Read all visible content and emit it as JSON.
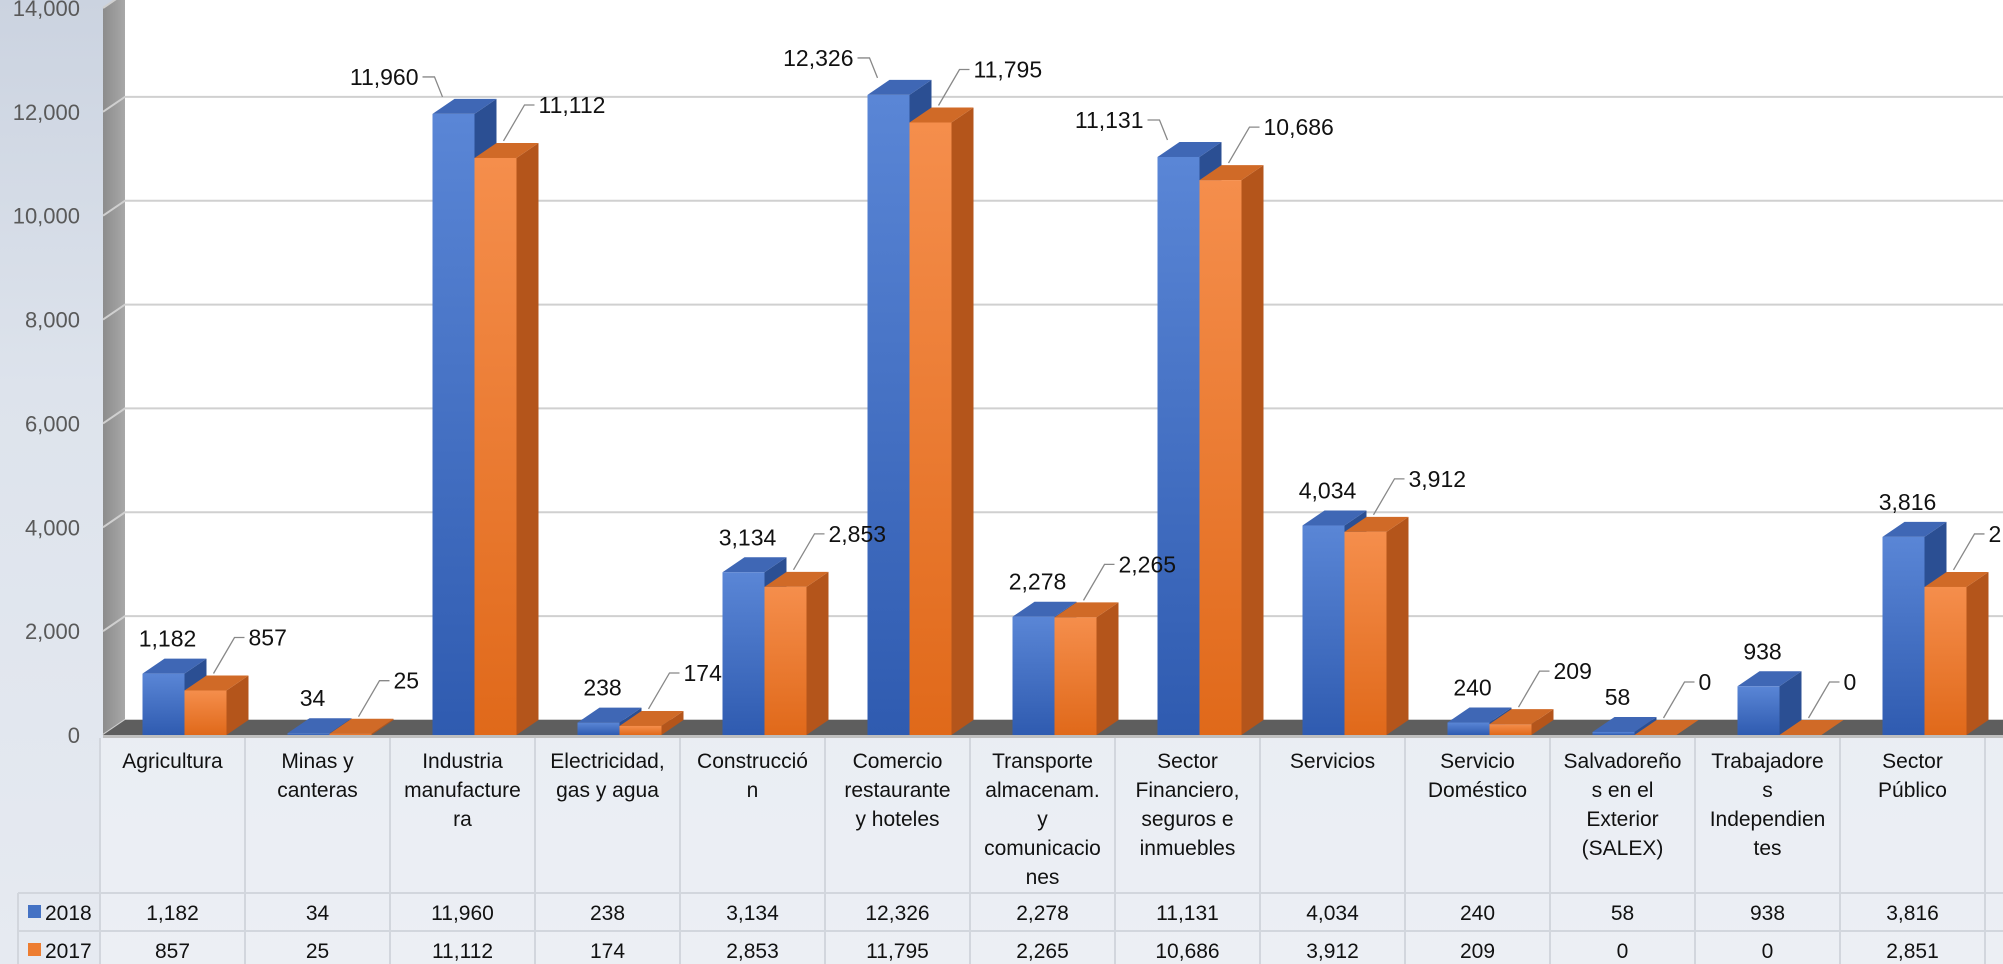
{
  "chart_data": {
    "type": "bar",
    "title": "",
    "xlabel": "",
    "ylabel": "",
    "ylim": [
      0,
      14000
    ],
    "yticks": [
      "0",
      "2,000",
      "4,000",
      "6,000",
      "8,000",
      "10,000",
      "12,000",
      "14,000"
    ],
    "grid": true,
    "legend": "data-table",
    "categories": [
      [
        "Agricultura"
      ],
      [
        "Minas y",
        "canteras"
      ],
      [
        "Industria",
        "manufacture",
        "ra"
      ],
      [
        "Electricidad,",
        "gas y agua"
      ],
      [
        "Construcció",
        "n"
      ],
      [
        "Comercio",
        "restaurante",
        "y hoteles"
      ],
      [
        "Transporte",
        "almacenam.",
        "y",
        "comunicacio",
        "nes"
      ],
      [
        "Sector",
        "Financiero,",
        "seguros e",
        "inmuebles"
      ],
      [
        "Servicios"
      ],
      [
        "Servicio",
        "Doméstico"
      ],
      [
        "Salvadoreño",
        "s en el",
        "Exterior",
        "(SALEX)"
      ],
      [
        "Trabajadore",
        "s",
        "Independien",
        "tes"
      ],
      [
        "Sector",
        "Público"
      ]
    ],
    "series": [
      {
        "name": "2018",
        "color": "#4472c4",
        "values": [
          1182,
          34,
          11960,
          238,
          3134,
          12326,
          2278,
          11131,
          4034,
          240,
          58,
          938,
          3816
        ],
        "labels": [
          "1,182",
          "34",
          "11,960",
          "238",
          "3,134",
          "12,326",
          "2,278",
          "11,131",
          "4,034",
          "240",
          "58",
          "938",
          "3,816"
        ]
      },
      {
        "name": "2017",
        "color": "#ed7d31",
        "values": [
          857,
          25,
          11112,
          174,
          2853,
          11795,
          2265,
          10686,
          3912,
          209,
          0,
          0,
          2851
        ],
        "labels": [
          "857",
          "25",
          "11,112",
          "174",
          "2,853",
          "11,795",
          "2,265",
          "10,686",
          "3,912",
          "209",
          "0",
          "0",
          "2,851"
        ]
      }
    ]
  }
}
